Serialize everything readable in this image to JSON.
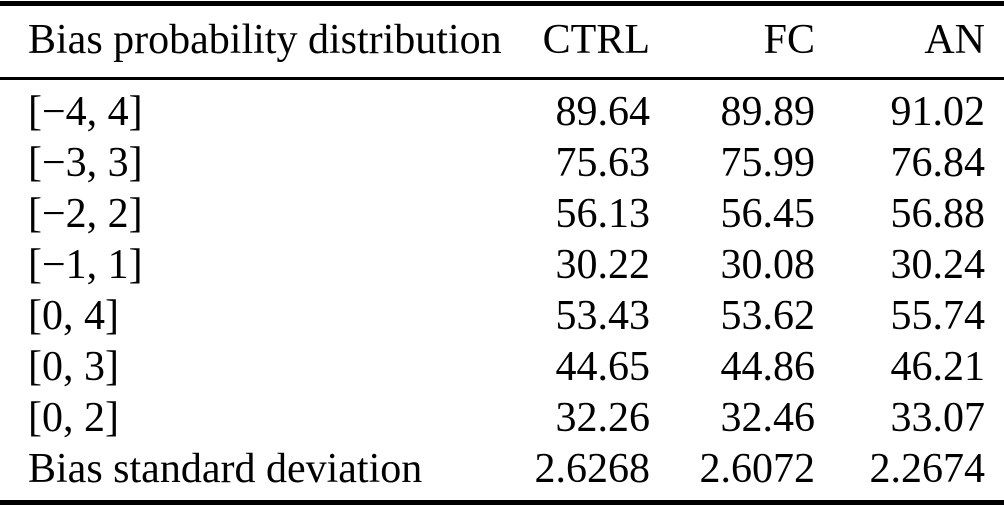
{
  "page": {
    "background": "#ffffff",
    "text_color": "#000000",
    "rule_color": "#000000"
  },
  "table": {
    "headers": [
      "Bias probability distribution",
      "CTRL",
      "FC",
      "AN"
    ],
    "rows": [
      {
        "label": "[−4, 4]",
        "values": [
          "89.64",
          "89.89",
          "91.02"
        ]
      },
      {
        "label": "[−3, 3]",
        "values": [
          "75.63",
          "75.99",
          "76.84"
        ]
      },
      {
        "label": "[−2, 2]",
        "values": [
          "56.13",
          "56.45",
          "56.88"
        ]
      },
      {
        "label": "[−1, 1]",
        "values": [
          "30.22",
          "30.08",
          "30.24"
        ]
      },
      {
        "label": "[0, 4]",
        "values": [
          "53.43",
          "53.62",
          "55.74"
        ]
      },
      {
        "label": "[0, 3]",
        "values": [
          "44.65",
          "44.86",
          "46.21"
        ]
      },
      {
        "label": "[0, 2]",
        "values": [
          "32.26",
          "32.46",
          "33.07"
        ]
      },
      {
        "label": "Bias standard deviation",
        "values": [
          "2.6268",
          "2.6072",
          "2.2674"
        ]
      }
    ]
  },
  "chart_data": {
    "type": "table",
    "columns": [
      "Bias probability distribution",
      "CTRL",
      "FC",
      "AN"
    ],
    "rows": [
      [
        "[−4, 4]",
        89.64,
        89.89,
        91.02
      ],
      [
        "[−3, 3]",
        75.63,
        75.99,
        76.84
      ],
      [
        "[−2, 2]",
        56.13,
        56.45,
        56.88
      ],
      [
        "[−1, 1]",
        30.22,
        30.08,
        30.24
      ],
      [
        "[0, 4]",
        53.43,
        53.62,
        55.74
      ],
      [
        "[0, 3]",
        44.65,
        44.86,
        46.21
      ],
      [
        "[0, 2]",
        32.26,
        32.46,
        33.07
      ],
      [
        "Bias standard deviation",
        2.6268,
        2.6072,
        2.2674
      ]
    ]
  }
}
